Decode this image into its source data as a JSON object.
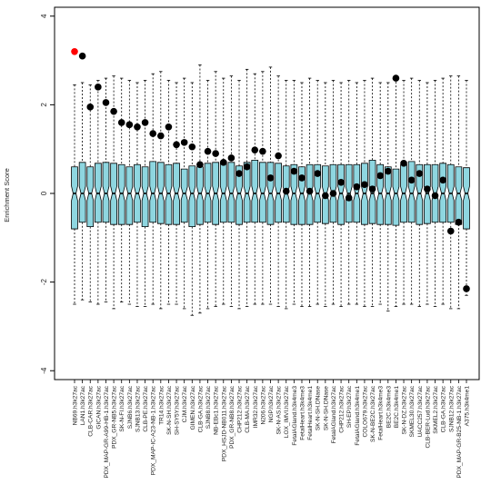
{
  "chart_data": {
    "type": "boxplot",
    "title": "",
    "xlabel": "",
    "ylabel": "Enrichment Score",
    "ylim": [
      -4.2,
      4.2
    ],
    "yticks": [
      -4,
      -2,
      0,
      2,
      4
    ],
    "ytick_labels": [
      "-4",
      "-2",
      "0",
      "2",
      "4"
    ],
    "grid": false,
    "legend": "none",
    "colors": {
      "box": "#8ed6e0",
      "point": "#000000",
      "highlight_point": "#ff0000"
    },
    "categories": [
      "NB69.h3k27ac",
      "LAN1.h3k27ac",
      "CLB-CAR.h3k27ac",
      "GICAN.h3k27ac",
      "PDX_MAP-GR-A99-HB-1.h3k27ac",
      "PDX_GR-NB5.h3k27ac",
      "SK-N-FI.h3k27ac",
      "SJNB6.h3k27ac",
      "SJNB13.h3k27ac",
      "CLB-PE.h3k27ac",
      "PDX_MAP-IC-A23-NB-1.h3k27ac",
      "TR14.h3k27ac",
      "SK-N-SH.h3k27ac",
      "SH-SY5Y.h3k27ac",
      "CJM.h3k27ac",
      "GIMEN.h3k27ac",
      "CLB-GA.h3k27ac",
      "SJNB8.h3k27ac",
      "NB-EBc1.h3k27ac",
      "PDX_HSJD-NB011.h3k27ac",
      "PDX_GR-NB8.h3k27ac",
      "CHP212.h3k27ac",
      "CLB-MA.h3k27ac",
      "IMR32.h3k27ac",
      "N206.h3k27ac",
      "NGP.h3k27ac",
      "SK-N-AS.h3k27ac",
      "LOX_IMVI.h3k27ac",
      "FetalAGland.h3k4me3",
      "FetalHeart.h3k4me3",
      "FetalHeart.h3k4me1",
      "SK-N-SH.DNase",
      "SK-N-SH.DNase",
      "FetalAGland.h3k27ac",
      "CHP212.h3k27ac",
      "SH-EP.h3k27ac",
      "FetalAGland.h3k4me1",
      "COLO679.h3k27ac",
      "SK-N-BE2C.h3k27ac",
      "FetalHeart.h3k4me3",
      "BE2C.h3k4me3",
      "BE2C.h3k4me1",
      "SK-N-DZ.h3k27ac",
      "SKMEL30.h3k27ac",
      "UACC257.h3k27ac",
      "CLB-BER-Lud.h3k27ac",
      "SKMEL2.h3k27ac",
      "CLB-GA.h3k27ac",
      "SJNB12.h3k27ac",
      "PDX_MAP-GR-B25-NB-1.h3k27ac",
      "A375.h3k4me1"
    ],
    "box_stats": [
      {
        "min": -2.5,
        "q1": -0.8,
        "med": 0,
        "q3": 0.6,
        "max": 2.45
      },
      {
        "min": -2.4,
        "q1": -0.65,
        "med": 0,
        "q3": 0.7,
        "max": 2.5
      },
      {
        "min": -2.45,
        "q1": -0.75,
        "med": 0,
        "q3": 0.6,
        "max": 2.45
      },
      {
        "min": -2.5,
        "q1": -0.65,
        "med": 0,
        "q3": 0.68,
        "max": 2.55
      },
      {
        "min": -2.45,
        "q1": -0.65,
        "med": 0,
        "q3": 0.7,
        "max": 2.6
      },
      {
        "min": -2.6,
        "q1": -0.7,
        "med": 0,
        "q3": 0.68,
        "max": 2.65
      },
      {
        "min": -2.45,
        "q1": -0.7,
        "med": 0,
        "q3": 0.65,
        "max": 2.6
      },
      {
        "min": -2.5,
        "q1": -0.7,
        "med": 0,
        "q3": 0.6,
        "max": 2.55
      },
      {
        "min": -2.55,
        "q1": -0.65,
        "med": 0,
        "q3": 0.65,
        "max": 2.5
      },
      {
        "min": -2.55,
        "q1": -0.75,
        "med": 0,
        "q3": 0.6,
        "max": 2.55
      },
      {
        "min": -2.5,
        "q1": -0.65,
        "med": 0,
        "q3": 0.72,
        "max": 2.7
      },
      {
        "min": -2.6,
        "q1": -0.68,
        "med": 0,
        "q3": 0.7,
        "max": 2.75
      },
      {
        "min": -2.5,
        "q1": -0.7,
        "med": 0,
        "q3": 0.65,
        "max": 2.55
      },
      {
        "min": -2.5,
        "q1": -0.7,
        "med": 0,
        "q3": 0.68,
        "max": 2.5
      },
      {
        "min": -2.6,
        "q1": -0.65,
        "med": 0,
        "q3": 0.55,
        "max": 2.6
      },
      {
        "min": -2.75,
        "q1": -0.75,
        "med": 0,
        "q3": 0.62,
        "max": 2.5
      },
      {
        "min": -2.7,
        "q1": -0.7,
        "med": 0,
        "q3": 0.6,
        "max": 2.9
      },
      {
        "min": -2.6,
        "q1": -0.65,
        "med": 0,
        "q3": 0.68,
        "max": 2.55
      },
      {
        "min": -2.55,
        "q1": -0.7,
        "med": 0,
        "q3": 0.7,
        "max": 2.75
      },
      {
        "min": -2.5,
        "q1": -0.65,
        "med": 0,
        "q3": 0.72,
        "max": 2.6
      },
      {
        "min": -2.55,
        "q1": -0.65,
        "med": 0,
        "q3": 0.7,
        "max": 2.65
      },
      {
        "min": -2.6,
        "q1": -0.7,
        "med": 0,
        "q3": 0.62,
        "max": 2.55
      },
      {
        "min": -2.55,
        "q1": -0.65,
        "med": 0,
        "q3": 0.7,
        "max": 2.8
      },
      {
        "min": -2.5,
        "q1": -0.65,
        "med": 0,
        "q3": 0.75,
        "max": 2.7
      },
      {
        "min": -2.5,
        "q1": -0.65,
        "med": 0,
        "q3": 0.7,
        "max": 2.75
      },
      {
        "min": -2.5,
        "q1": -0.7,
        "med": 0,
        "q3": 0.7,
        "max": 2.85
      },
      {
        "min": -2.55,
        "q1": -0.65,
        "med": 0,
        "q3": 0.68,
        "max": 2.65
      },
      {
        "min": -2.6,
        "q1": -0.65,
        "med": 0,
        "q3": 0.62,
        "max": 2.55
      },
      {
        "min": -2.5,
        "q1": -0.7,
        "med": 0,
        "q3": 0.65,
        "max": 2.55
      },
      {
        "min": -2.55,
        "q1": -0.7,
        "med": 0,
        "q3": 0.6,
        "max": 2.5
      },
      {
        "min": -2.55,
        "q1": -0.7,
        "med": 0,
        "q3": 0.65,
        "max": 2.6
      },
      {
        "min": -2.5,
        "q1": -0.65,
        "med": 0,
        "q3": 0.65,
        "max": 2.55
      },
      {
        "min": -2.55,
        "q1": -0.68,
        "med": 0,
        "q3": 0.62,
        "max": 2.5
      },
      {
        "min": -2.5,
        "q1": -0.65,
        "med": 0,
        "q3": 0.65,
        "max": 2.55
      },
      {
        "min": -2.55,
        "q1": -0.7,
        "med": 0,
        "q3": 0.65,
        "max": 2.5
      },
      {
        "min": -2.5,
        "q1": -0.65,
        "med": 0,
        "q3": 0.65,
        "max": 2.55
      },
      {
        "min": -2.5,
        "q1": -0.65,
        "med": 0,
        "q3": 0.65,
        "max": 2.5
      },
      {
        "min": -2.55,
        "q1": -0.7,
        "med": 0,
        "q3": 0.68,
        "max": 2.55
      },
      {
        "min": -2.55,
        "q1": -0.68,
        "med": 0,
        "q3": 0.75,
        "max": 2.6
      },
      {
        "min": -2.5,
        "q1": -0.7,
        "med": 0,
        "q3": 0.65,
        "max": 2.5
      },
      {
        "min": -2.65,
        "q1": -0.7,
        "med": 0,
        "q3": 0.6,
        "max": 2.5
      },
      {
        "min": -2.55,
        "q1": -0.72,
        "med": 0,
        "q3": 0.55,
        "max": 2.6
      },
      {
        "min": -2.5,
        "q1": -0.65,
        "med": 0,
        "q3": 0.65,
        "max": 2.55
      },
      {
        "min": -2.5,
        "q1": -0.65,
        "med": 0,
        "q3": 0.72,
        "max": 2.6
      },
      {
        "min": -2.55,
        "q1": -0.7,
        "med": 0,
        "q3": 0.65,
        "max": 2.55
      },
      {
        "min": -2.5,
        "q1": -0.68,
        "med": 0,
        "q3": 0.65,
        "max": 2.5
      },
      {
        "min": -2.55,
        "q1": -0.65,
        "med": 0,
        "q3": 0.65,
        "max": 2.55
      },
      {
        "min": -2.5,
        "q1": -0.65,
        "med": 0,
        "q3": 0.68,
        "max": 2.6
      },
      {
        "min": -2.6,
        "q1": -0.65,
        "med": 0,
        "q3": 0.65,
        "max": 2.65
      },
      {
        "min": -2.6,
        "q1": -0.7,
        "med": 0,
        "q3": 0.6,
        "max": 2.65
      },
      {
        "min": -2.3,
        "q1": -0.8,
        "med": 0,
        "q3": 0.58,
        "max": 2.55
      }
    ],
    "points": [
      {
        "x": 1,
        "y": 3.2,
        "highlight": true
      },
      {
        "x": 2,
        "y": 3.1
      },
      {
        "x": 3,
        "y": 1.95
      },
      {
        "x": 4,
        "y": 2.4
      },
      {
        "x": 5,
        "y": 2.05
      },
      {
        "x": 6,
        "y": 1.85
      },
      {
        "x": 7,
        "y": 1.6
      },
      {
        "x": 8,
        "y": 1.55
      },
      {
        "x": 9,
        "y": 1.5
      },
      {
        "x": 10,
        "y": 1.6
      },
      {
        "x": 11,
        "y": 1.35
      },
      {
        "x": 12,
        "y": 1.3
      },
      {
        "x": 13,
        "y": 1.5
      },
      {
        "x": 14,
        "y": 1.1
      },
      {
        "x": 15,
        "y": 1.15
      },
      {
        "x": 16,
        "y": 1.05
      },
      {
        "x": 17,
        "y": 0.65
      },
      {
        "x": 18,
        "y": 0.95
      },
      {
        "x": 19,
        "y": 0.9
      },
      {
        "x": 20,
        "y": 0.7
      },
      {
        "x": 21,
        "y": 0.8
      },
      {
        "x": 22,
        "y": 0.45
      },
      {
        "x": 23,
        "y": 0.6
      },
      {
        "x": 24,
        "y": 0.98
      },
      {
        "x": 25,
        "y": 0.95
      },
      {
        "x": 26,
        "y": 0.35
      },
      {
        "x": 27,
        "y": 0.85
      },
      {
        "x": 28,
        "y": 0.05
      },
      {
        "x": 29,
        "y": 0.5
      },
      {
        "x": 30,
        "y": 0.35
      },
      {
        "x": 31,
        "y": 0.05
      },
      {
        "x": 32,
        "y": 0.45
      },
      {
        "x": 33,
        "y": -0.05
      },
      {
        "x": 34,
        "y": 0.0
      },
      {
        "x": 35,
        "y": 0.25
      },
      {
        "x": 36,
        "y": -0.1
      },
      {
        "x": 37,
        "y": 0.15
      },
      {
        "x": 38,
        "y": 0.2
      },
      {
        "x": 39,
        "y": 0.1
      },
      {
        "x": 40,
        "y": 0.4
      },
      {
        "x": 41,
        "y": 0.5
      },
      {
        "x": 42,
        "y": 2.6
      },
      {
        "x": 43,
        "y": 0.68
      },
      {
        "x": 44,
        "y": 0.3
      },
      {
        "x": 45,
        "y": 0.45
      },
      {
        "x": 46,
        "y": 0.1
      },
      {
        "x": 47,
        "y": -0.05
      },
      {
        "x": 48,
        "y": 0.3
      },
      {
        "x": 49,
        "y": -0.85
      },
      {
        "x": 50,
        "y": -0.65
      },
      {
        "x": 51,
        "y": -2.15
      }
    ]
  }
}
